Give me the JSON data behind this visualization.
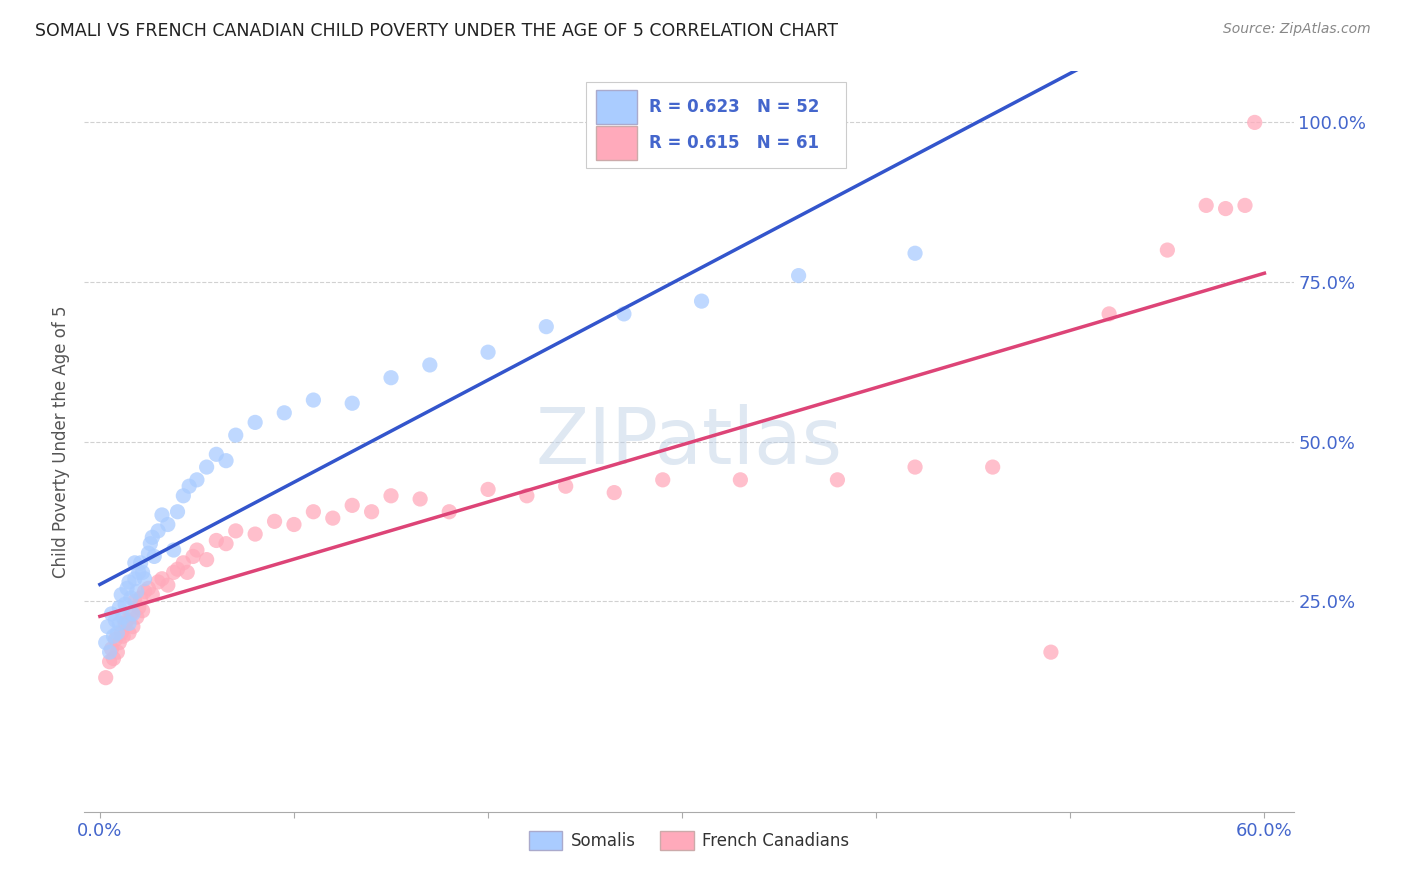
{
  "title": "SOMALI VS FRENCH CANADIAN CHILD POVERTY UNDER THE AGE OF 5 CORRELATION CHART",
  "source": "Source: ZipAtlas.com",
  "ylabel": "Child Poverty Under the Age of 5",
  "xlim": [
    -0.008,
    0.615
  ],
  "ylim": [
    -0.08,
    1.08
  ],
  "xtick_positions": [
    0.0,
    0.1,
    0.2,
    0.3,
    0.4,
    0.5,
    0.6
  ],
  "xticklabels": [
    "0.0%",
    "",
    "",
    "",
    "",
    "",
    "60.0%"
  ],
  "ytick_positions": [
    0.0,
    0.25,
    0.5,
    0.75,
    1.0
  ],
  "yticklabels": [
    "",
    "25.0%",
    "50.0%",
    "75.0%",
    "100.0%"
  ],
  "somali_color": "#aaccff",
  "french_color": "#ffaabb",
  "somali_line_color": "#3355cc",
  "french_line_color": "#dd4477",
  "R_somali": 0.623,
  "N_somali": 52,
  "R_french": 0.615,
  "N_french": 61,
  "watermark": "ZIPatlas",
  "background_color": "#ffffff",
  "grid_color": "#cccccc",
  "title_color": "#222222",
  "source_color": "#888888",
  "tick_color": "#4466cc",
  "somali_x": [
    0.003,
    0.004,
    0.005,
    0.006,
    0.007,
    0.008,
    0.009,
    0.01,
    0.01,
    0.011,
    0.012,
    0.013,
    0.014,
    0.015,
    0.015,
    0.016,
    0.017,
    0.018,
    0.018,
    0.019,
    0.02,
    0.021,
    0.022,
    0.023,
    0.025,
    0.026,
    0.027,
    0.028,
    0.03,
    0.032,
    0.035,
    0.038,
    0.04,
    0.043,
    0.046,
    0.05,
    0.055,
    0.06,
    0.065,
    0.07,
    0.08,
    0.095,
    0.11,
    0.13,
    0.15,
    0.17,
    0.2,
    0.23,
    0.27,
    0.31,
    0.36,
    0.42
  ],
  "somali_y": [
    0.185,
    0.21,
    0.17,
    0.23,
    0.195,
    0.22,
    0.2,
    0.24,
    0.215,
    0.26,
    0.225,
    0.245,
    0.27,
    0.215,
    0.28,
    0.255,
    0.23,
    0.285,
    0.31,
    0.265,
    0.295,
    0.31,
    0.295,
    0.285,
    0.325,
    0.34,
    0.35,
    0.32,
    0.36,
    0.385,
    0.37,
    0.33,
    0.39,
    0.415,
    0.43,
    0.44,
    0.46,
    0.48,
    0.47,
    0.51,
    0.53,
    0.545,
    0.565,
    0.56,
    0.6,
    0.62,
    0.64,
    0.68,
    0.7,
    0.72,
    0.76,
    0.795
  ],
  "french_x": [
    0.003,
    0.005,
    0.006,
    0.007,
    0.008,
    0.009,
    0.01,
    0.011,
    0.012,
    0.013,
    0.014,
    0.015,
    0.016,
    0.017,
    0.018,
    0.019,
    0.02,
    0.021,
    0.022,
    0.023,
    0.025,
    0.027,
    0.03,
    0.032,
    0.035,
    0.038,
    0.04,
    0.043,
    0.045,
    0.048,
    0.05,
    0.055,
    0.06,
    0.065,
    0.07,
    0.08,
    0.09,
    0.1,
    0.11,
    0.12,
    0.13,
    0.14,
    0.15,
    0.165,
    0.18,
    0.2,
    0.22,
    0.24,
    0.265,
    0.29,
    0.33,
    0.38,
    0.42,
    0.46,
    0.49,
    0.52,
    0.55,
    0.57,
    0.58,
    0.59,
    0.595
  ],
  "french_y": [
    0.13,
    0.155,
    0.175,
    0.16,
    0.19,
    0.17,
    0.185,
    0.2,
    0.195,
    0.215,
    0.22,
    0.2,
    0.23,
    0.21,
    0.25,
    0.225,
    0.24,
    0.255,
    0.235,
    0.265,
    0.27,
    0.26,
    0.28,
    0.285,
    0.275,
    0.295,
    0.3,
    0.31,
    0.295,
    0.32,
    0.33,
    0.315,
    0.345,
    0.34,
    0.36,
    0.355,
    0.375,
    0.37,
    0.39,
    0.38,
    0.4,
    0.39,
    0.415,
    0.41,
    0.39,
    0.425,
    0.415,
    0.43,
    0.42,
    0.44,
    0.44,
    0.44,
    0.46,
    0.46,
    0.17,
    0.7,
    0.8,
    0.87,
    0.865,
    0.87,
    1.0
  ]
}
